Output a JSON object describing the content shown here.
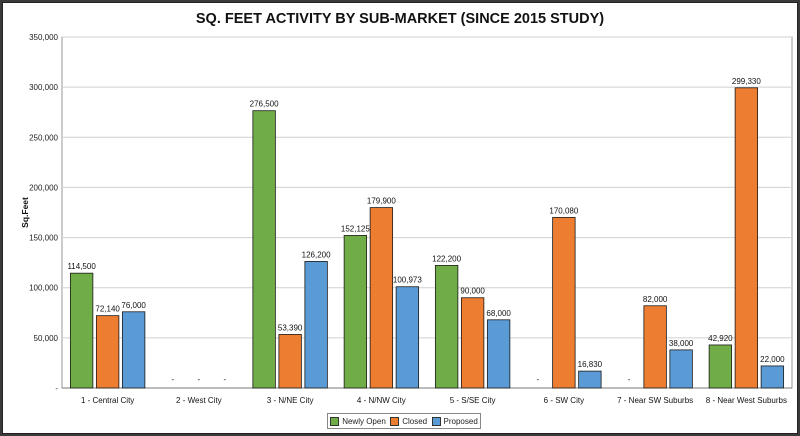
{
  "chart_data": {
    "type": "bar",
    "title": "SQ. FEET ACTIVITY BY SUB-MARKET (SINCE 2015 STUDY)",
    "ylabel": "Sq.Feet",
    "xlabel": "",
    "ylim": [
      0,
      350000
    ],
    "yticks": [
      0,
      50000,
      100000,
      150000,
      200000,
      250000,
      300000,
      350000
    ],
    "ytick_labels": [
      "-",
      "50,000",
      "100,000",
      "150,000",
      "200,000",
      "250,000",
      "300,000",
      "350,000"
    ],
    "grid": true,
    "legend_position": "bottom",
    "categories": [
      "1 - Central City",
      "2 - West City",
      "3 - N/NE City",
      "4 - N/NW City",
      "5 - S/SE City",
      "6 - SW City",
      "7 - Near SW Suburbs",
      "8 - Near West Suburbs"
    ],
    "series": [
      {
        "name": "Newly Open",
        "color": "#70ad47",
        "values": [
          114500,
          0,
          276500,
          152125,
          122200,
          0,
          0,
          42920
        ],
        "labels": [
          "114,500",
          "-",
          "276,500",
          "152,125",
          "122,200",
          "-",
          "-",
          "42,920"
        ]
      },
      {
        "name": "Closed",
        "color": "#ed7d31",
        "values": [
          72140,
          0,
          53390,
          179900,
          90000,
          170080,
          82000,
          299330
        ],
        "labels": [
          "72,140",
          "-",
          "53,390",
          "179,900",
          "90,000",
          "170,080",
          "82,000",
          "299,330"
        ]
      },
      {
        "name": "Proposed",
        "color": "#5b9bd5",
        "values": [
          76000,
          0,
          126200,
          100973,
          68000,
          16830,
          38000,
          22000
        ],
        "labels": [
          "76,000",
          "-",
          "126,200",
          "100,973",
          "68,000",
          "16,830",
          "38,000",
          "22,000"
        ]
      }
    ]
  }
}
